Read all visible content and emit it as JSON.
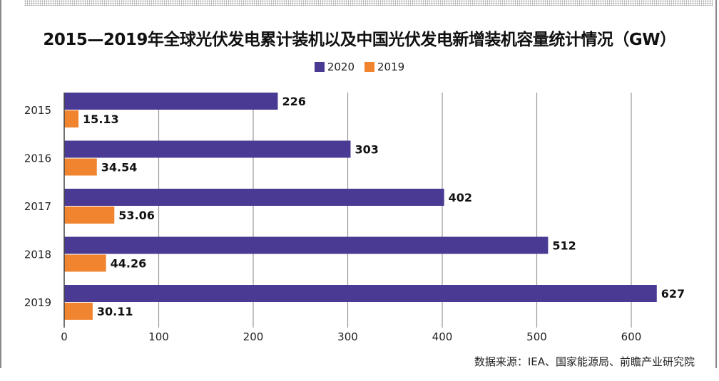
{
  "chart_data": {
    "type": "bar",
    "orientation": "horizontal",
    "title": "2015—2019年全球光伏发电累计装机以及中国光伏发电新增装机容量统计情况（GW）",
    "categories": [
      "2015",
      "2016",
      "2017",
      "2018",
      "2019"
    ],
    "series": [
      {
        "name": "2020",
        "color": "#4a3a94",
        "values": [
          226,
          303,
          402,
          512,
          627
        ]
      },
      {
        "name": "2019",
        "color": "#f0842f",
        "values": [
          15.13,
          34.54,
          53.06,
          44.26,
          30.11
        ]
      }
    ],
    "value_labels": [
      [
        "226",
        "303",
        "402",
        "512",
        "627"
      ],
      [
        "15.13",
        "34.54",
        "53.06",
        "44.26",
        "30.11"
      ]
    ],
    "xticks": [
      "0",
      "100",
      "200",
      "300",
      "400",
      "500",
      "600"
    ],
    "xlim": [
      0,
      660
    ],
    "grid": true,
    "legend": "top-center",
    "source": "数据来源：IEA、国家能源局、前瞻产业研究院"
  }
}
